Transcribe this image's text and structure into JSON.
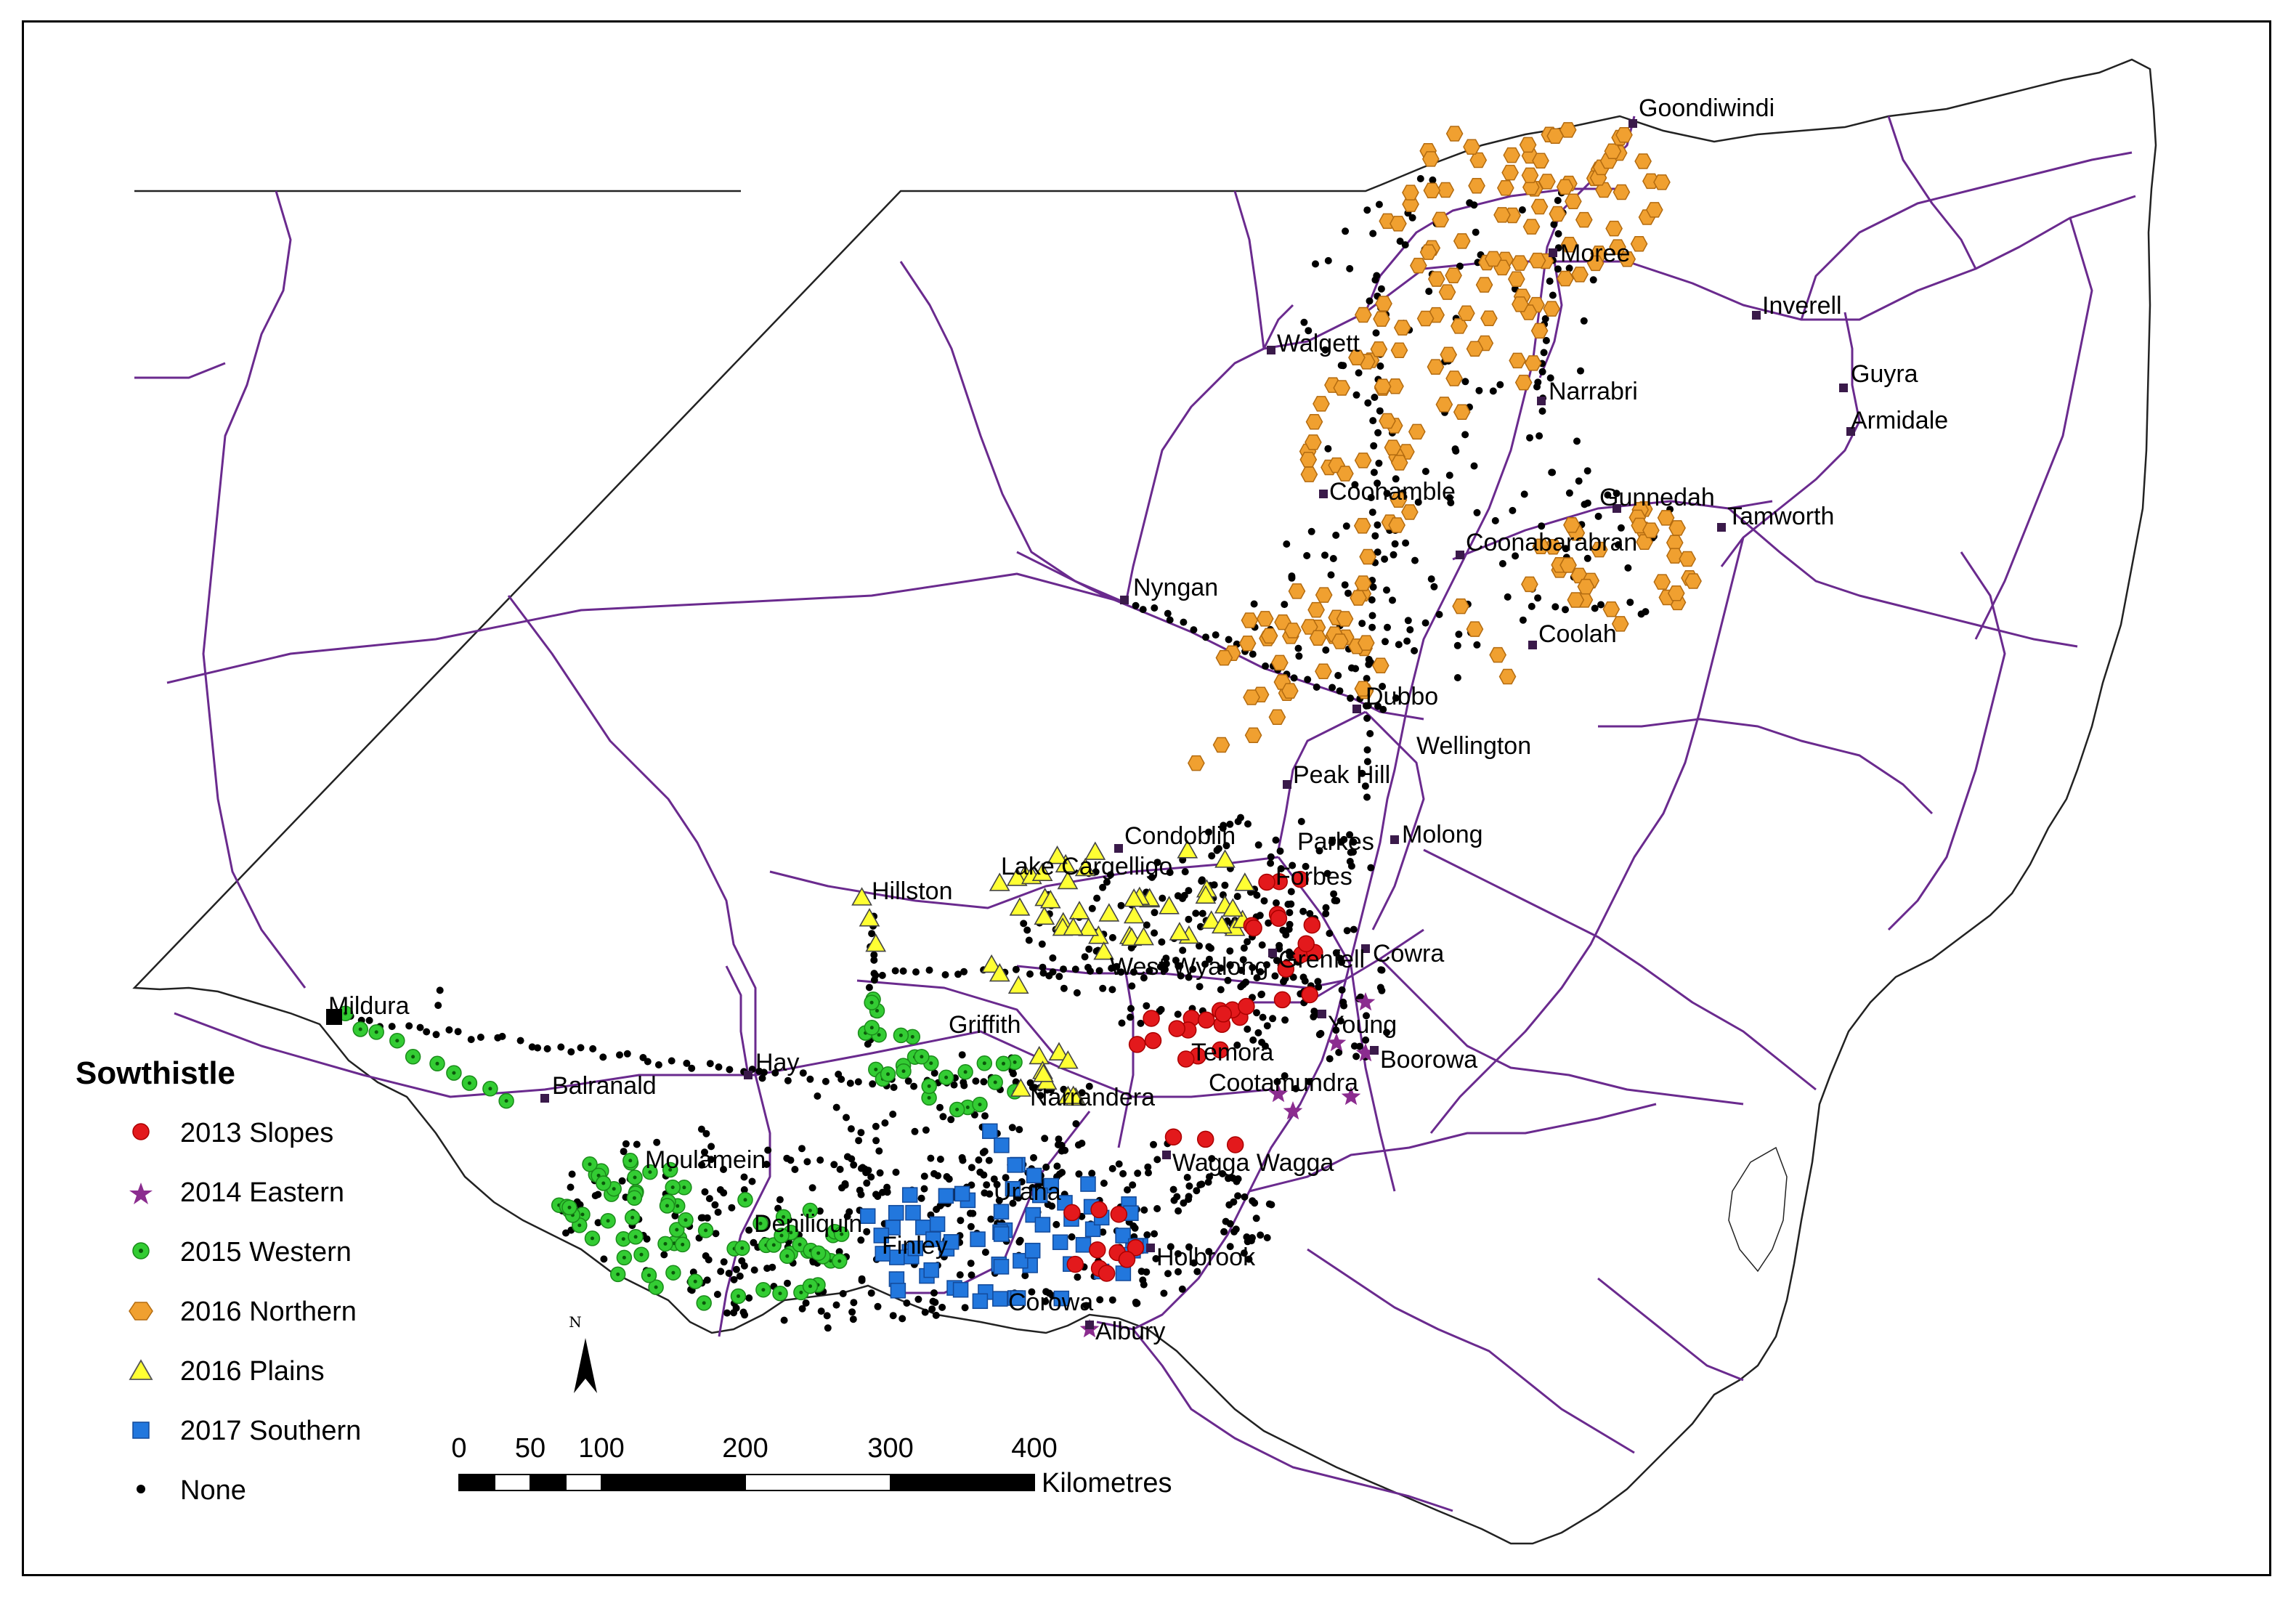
{
  "legend": {
    "title": "Sowthistle",
    "items": [
      {
        "label": "2013 Slopes",
        "symbol": "red-circle",
        "color": "#e3191c"
      },
      {
        "label": "2014 Eastern",
        "symbol": "purple-star",
        "color": "#8b2c8f"
      },
      {
        "label": "2015 Western",
        "symbol": "green-dotted-circle",
        "color": "#33cc33"
      },
      {
        "label": "2016 Northern",
        "symbol": "orange-hexagon",
        "color": "#f0a030"
      },
      {
        "label": "2016 Plains",
        "symbol": "yellow-triangle",
        "color": "#ffff33"
      },
      {
        "label": "2017 Southern",
        "symbol": "blue-square",
        "color": "#2277dd"
      },
      {
        "label": "None",
        "symbol": "black-dot",
        "color": "#000000"
      }
    ]
  },
  "scale_bar": {
    "ticks": [
      "0",
      "50",
      "100",
      "200",
      "300",
      "400"
    ],
    "unit": "Kilometres"
  },
  "north_arrow": {
    "label": "N"
  },
  "towns": [
    {
      "id": "goondiwindi",
      "name": "Goondiwindi"
    },
    {
      "id": "moree",
      "name": "Moree"
    },
    {
      "id": "inverell",
      "name": "Inverell"
    },
    {
      "id": "walgett",
      "name": "Walgett"
    },
    {
      "id": "narrabri",
      "name": "Narrabri"
    },
    {
      "id": "guyra",
      "name": "Guyra"
    },
    {
      "id": "armidale",
      "name": "Armidale"
    },
    {
      "id": "coonamble",
      "name": "Coonamble"
    },
    {
      "id": "gunnedah",
      "name": "Gunnedah"
    },
    {
      "id": "tamworth",
      "name": "Tamworth"
    },
    {
      "id": "coonabarabran",
      "name": "Coonabarabran"
    },
    {
      "id": "nyngan",
      "name": "Nyngan"
    },
    {
      "id": "coolah",
      "name": "Coolah"
    },
    {
      "id": "dubbo",
      "name": "Dubbo"
    },
    {
      "id": "wellington",
      "name": "Wellington"
    },
    {
      "id": "peakhill",
      "name": "Peak Hill"
    },
    {
      "id": "condobolin",
      "name": "Condoblin"
    },
    {
      "id": "parkes",
      "name": "Parkes"
    },
    {
      "id": "molong",
      "name": "Molong"
    },
    {
      "id": "lakecargelligo",
      "name": "Lake Cargelligo"
    },
    {
      "id": "forbes",
      "name": "Forbes"
    },
    {
      "id": "hillston",
      "name": "Hillston"
    },
    {
      "id": "cowra",
      "name": "Cowra"
    },
    {
      "id": "westwyalong",
      "name": "West Wyalong"
    },
    {
      "id": "grenfell",
      "name": "Grenfell"
    },
    {
      "id": "mildura",
      "name": "Mildura"
    },
    {
      "id": "young",
      "name": "Young"
    },
    {
      "id": "griffith",
      "name": "Griffith"
    },
    {
      "id": "hay",
      "name": "Hay"
    },
    {
      "id": "boorowa",
      "name": "Boorowa"
    },
    {
      "id": "temora",
      "name": "Temora"
    },
    {
      "id": "balranald",
      "name": "Balranald"
    },
    {
      "id": "cootamundra",
      "name": "Cootamundra"
    },
    {
      "id": "narrandera",
      "name": "Narrandera"
    },
    {
      "id": "moulamein",
      "name": "Moulamein"
    },
    {
      "id": "waggawagga",
      "name": "Wagga Wagga"
    },
    {
      "id": "urana",
      "name": "Urana"
    },
    {
      "id": "deniliquin",
      "name": "Deniliquin"
    },
    {
      "id": "holbrook",
      "name": "Holbrook"
    },
    {
      "id": "finley",
      "name": "Finley"
    },
    {
      "id": "corowa",
      "name": "Corowa"
    },
    {
      "id": "albury",
      "name": "Albury"
    }
  ]
}
